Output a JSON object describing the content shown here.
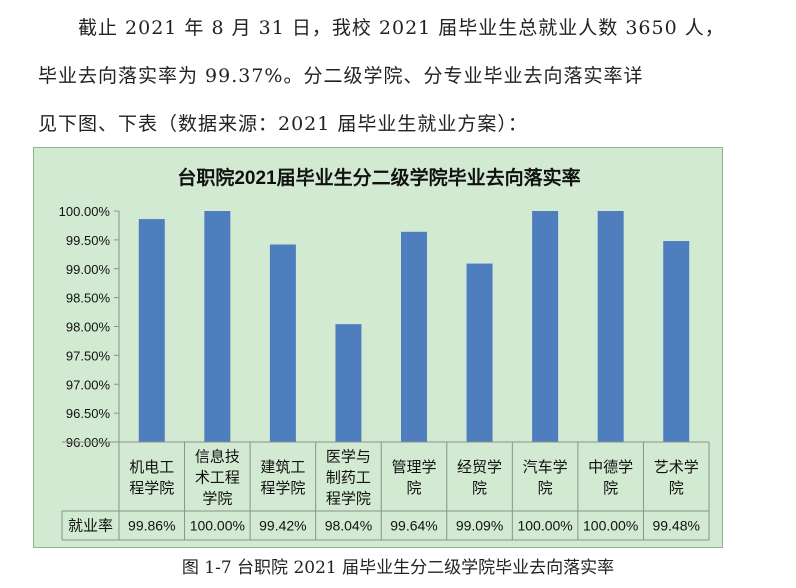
{
  "paragraph": {
    "line1": "截止 2021 年 8 月 31 日，我校 2021 届毕业生总就业人数 3650 人，",
    "line2": "毕业去向落实率为 99.37%。分二级学院、分专业毕业去向落实率详",
    "line3": "见下图、下表（数据来源：2021  届毕业生就业方案）："
  },
  "caption": "图 1-7  台职院 2021 届毕业生分二级学院毕业去向落实率",
  "colors": {
    "bar": "#4f7ebe",
    "panel": "#d3ead2",
    "border": "#8fb58c",
    "axis": "#8e8e8e"
  },
  "chart_data": {
    "type": "bar",
    "title": "台职院2021届毕业生分二级学院毕业去向落实率",
    "categories": [
      [
        "机电工",
        "程学院"
      ],
      [
        "信息技",
        "术工程",
        "学院"
      ],
      [
        "建筑工",
        "程学院"
      ],
      [
        "医学与",
        "制药工",
        "程学院"
      ],
      [
        "管理学",
        "院"
      ],
      [
        "经贸学",
        "院"
      ],
      [
        "汽车学",
        "院"
      ],
      [
        "中德学",
        "院"
      ],
      [
        "艺术学",
        "院"
      ]
    ],
    "table_row_label": "就业率",
    "value_labels": [
      "99.86%",
      "100.00%",
      "99.42%",
      "98.04%",
      "99.64%",
      "99.09%",
      "100.00%",
      "100.00%",
      "99.48%"
    ],
    "values": [
      99.86,
      100.0,
      99.42,
      98.04,
      99.64,
      99.09,
      100.0,
      100.0,
      99.48
    ],
    "ylim": [
      96.0,
      100.0
    ],
    "yticks": [
      "96.00%",
      "96.50%",
      "97.00%",
      "97.50%",
      "98.00%",
      "98.50%",
      "99.00%",
      "99.50%",
      "100.00%"
    ],
    "ytick_values": [
      96.0,
      96.5,
      97.0,
      97.5,
      98.0,
      98.5,
      99.0,
      99.5,
      100.0
    ],
    "legend": "none",
    "grid": false
  }
}
